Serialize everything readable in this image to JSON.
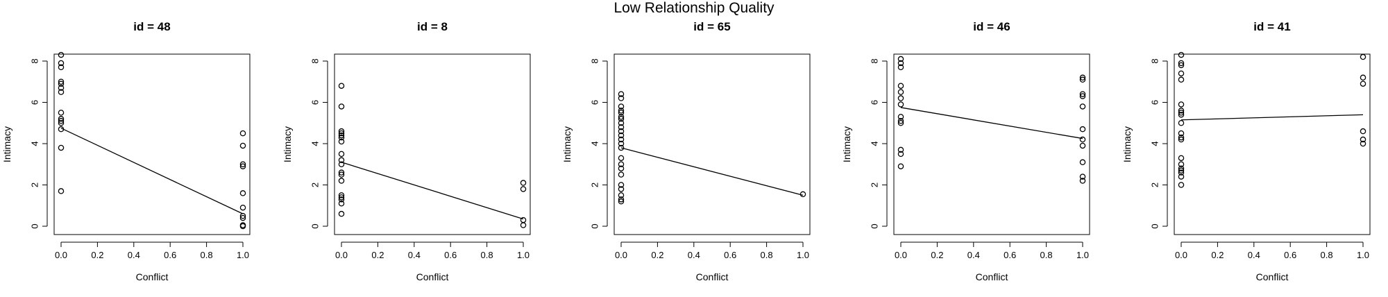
{
  "title": "Low Relationship Quality",
  "chart_data": [
    {
      "type": "scatter",
      "title": "id = 48",
      "xlabel": "Conflict",
      "ylabel": "Intimacy",
      "xlim": [
        0,
        1
      ],
      "ylim": [
        0,
        8
      ],
      "xticks": [
        "0.0",
        "0.2",
        "0.4",
        "0.6",
        "0.8",
        "1.0"
      ],
      "yticks": [
        "0",
        "2",
        "4",
        "6",
        "8"
      ],
      "points": [
        [
          0,
          8.3
        ],
        [
          0,
          7.9
        ],
        [
          0,
          7.7
        ],
        [
          0,
          7.0
        ],
        [
          0,
          6.9
        ],
        [
          0,
          6.7
        ],
        [
          0,
          6.5
        ],
        [
          0,
          5.5
        ],
        [
          0,
          5.2
        ],
        [
          0,
          5.1
        ],
        [
          0,
          5.0
        ],
        [
          0,
          4.7
        ],
        [
          0,
          3.8
        ],
        [
          0,
          1.7
        ],
        [
          1,
          4.5
        ],
        [
          1,
          3.9
        ],
        [
          1,
          3.0
        ],
        [
          1,
          2.9
        ],
        [
          1,
          1.6
        ],
        [
          1,
          0.9
        ],
        [
          1,
          0.5
        ],
        [
          1,
          0.4
        ],
        [
          1,
          0.05
        ],
        [
          1,
          0.0
        ]
      ],
      "fit_line": [
        [
          0,
          4.75
        ],
        [
          1,
          0.6
        ]
      ]
    },
    {
      "type": "scatter",
      "title": "id = 8",
      "xlabel": "Conflict",
      "ylabel": "Intimacy",
      "xlim": [
        0,
        1
      ],
      "ylim": [
        0,
        8
      ],
      "xticks": [
        "0.0",
        "0.2",
        "0.4",
        "0.6",
        "0.8",
        "1.0"
      ],
      "yticks": [
        "0",
        "2",
        "4",
        "6",
        "8"
      ],
      "points": [
        [
          0,
          6.8
        ],
        [
          0,
          5.8
        ],
        [
          0,
          4.6
        ],
        [
          0,
          4.5
        ],
        [
          0,
          4.4
        ],
        [
          0,
          4.3
        ],
        [
          0,
          4.1
        ],
        [
          0,
          3.5
        ],
        [
          0,
          3.2
        ],
        [
          0,
          3.0
        ],
        [
          0,
          2.6
        ],
        [
          0,
          2.5
        ],
        [
          0,
          2.2
        ],
        [
          0,
          1.5
        ],
        [
          0,
          1.4
        ],
        [
          0,
          1.3
        ],
        [
          0,
          1.1
        ],
        [
          0,
          0.6
        ],
        [
          1,
          2.1
        ],
        [
          1,
          1.8
        ],
        [
          1,
          0.3
        ],
        [
          1,
          0.05
        ]
      ],
      "fit_line": [
        [
          0,
          3.1
        ],
        [
          1,
          0.35
        ]
      ]
    },
    {
      "type": "scatter",
      "title": "id = 65",
      "xlabel": "Conflict",
      "ylabel": "Intimacy",
      "xlim": [
        0,
        1
      ],
      "ylim": [
        0,
        8
      ],
      "xticks": [
        "0.0",
        "0.2",
        "0.4",
        "0.6",
        "0.8",
        "1.0"
      ],
      "yticks": [
        "0",
        "2",
        "4",
        "6",
        "8"
      ],
      "points": [
        [
          0,
          6.4
        ],
        [
          0,
          6.2
        ],
        [
          0,
          5.8
        ],
        [
          0,
          5.6
        ],
        [
          0,
          5.5
        ],
        [
          0,
          5.3
        ],
        [
          0,
          5.2
        ],
        [
          0,
          5.0
        ],
        [
          0,
          4.8
        ],
        [
          0,
          4.6
        ],
        [
          0,
          4.4
        ],
        [
          0,
          4.2
        ],
        [
          0,
          4.0
        ],
        [
          0,
          3.8
        ],
        [
          0,
          3.3
        ],
        [
          0,
          3.0
        ],
        [
          0,
          2.8
        ],
        [
          0,
          2.5
        ],
        [
          0,
          2.0
        ],
        [
          0,
          1.8
        ],
        [
          0,
          1.5
        ],
        [
          0,
          1.3
        ],
        [
          0,
          1.2
        ],
        [
          1,
          1.55
        ]
      ],
      "fit_line": [
        [
          0,
          3.8
        ],
        [
          1,
          1.5
        ]
      ]
    },
    {
      "type": "scatter",
      "title": "id = 46",
      "xlabel": "Conflict",
      "ylabel": "Intimacy",
      "xlim": [
        0,
        1
      ],
      "ylim": [
        0,
        8
      ],
      "xticks": [
        "0.0",
        "0.2",
        "0.4",
        "0.6",
        "0.8",
        "1.0"
      ],
      "yticks": [
        "0",
        "2",
        "4",
        "6",
        "8"
      ],
      "points": [
        [
          0,
          8.1
        ],
        [
          0,
          7.9
        ],
        [
          0,
          7.7
        ],
        [
          0,
          6.8
        ],
        [
          0,
          6.5
        ],
        [
          0,
          6.2
        ],
        [
          0,
          5.9
        ],
        [
          0,
          5.3
        ],
        [
          0,
          5.1
        ],
        [
          0,
          5.0
        ],
        [
          0,
          3.7
        ],
        [
          0,
          3.5
        ],
        [
          0,
          2.9
        ],
        [
          1,
          7.2
        ],
        [
          1,
          7.1
        ],
        [
          1,
          6.4
        ],
        [
          1,
          6.3
        ],
        [
          1,
          5.8
        ],
        [
          1,
          4.7
        ],
        [
          1,
          4.2
        ],
        [
          1,
          3.9
        ],
        [
          1,
          3.1
        ],
        [
          1,
          2.4
        ],
        [
          1,
          2.2
        ]
      ],
      "fit_line": [
        [
          0,
          5.75
        ],
        [
          1,
          4.25
        ]
      ]
    },
    {
      "type": "scatter",
      "title": "id = 41",
      "xlabel": "Conflict",
      "ylabel": "Intimacy",
      "xlim": [
        0,
        1
      ],
      "ylim": [
        0,
        8
      ],
      "xticks": [
        "0.0",
        "0.2",
        "0.4",
        "0.6",
        "0.8",
        "1.0"
      ],
      "yticks": [
        "0",
        "2",
        "4",
        "6",
        "8"
      ],
      "points": [
        [
          0,
          8.3
        ],
        [
          0,
          7.9
        ],
        [
          0,
          7.8
        ],
        [
          0,
          7.4
        ],
        [
          0,
          7.1
        ],
        [
          0,
          5.9
        ],
        [
          0,
          5.6
        ],
        [
          0,
          5.5
        ],
        [
          0,
          5.4
        ],
        [
          0,
          5.0
        ],
        [
          0,
          4.5
        ],
        [
          0,
          4.3
        ],
        [
          0,
          4.2
        ],
        [
          0,
          3.3
        ],
        [
          0,
          3.0
        ],
        [
          0,
          2.8
        ],
        [
          0,
          2.7
        ],
        [
          0,
          2.6
        ],
        [
          0,
          2.4
        ],
        [
          0,
          2.0
        ],
        [
          1,
          8.2
        ],
        [
          1,
          7.2
        ],
        [
          1,
          6.9
        ],
        [
          1,
          4.6
        ],
        [
          1,
          4.2
        ],
        [
          1,
          4.0
        ]
      ],
      "fit_line": [
        [
          0,
          5.15
        ],
        [
          1,
          5.4
        ]
      ]
    }
  ]
}
